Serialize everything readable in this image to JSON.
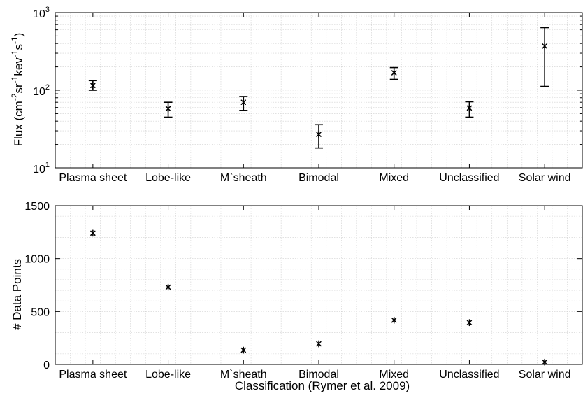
{
  "chart_data": [
    {
      "type": "scatter",
      "categories": [
        "Plasma sheet",
        "Lobe-like",
        "M`sheath",
        "Bimodal",
        "Mixed",
        "Unclassified",
        "Solar wind"
      ],
      "series": [
        {
          "values": [
            115,
            58,
            70,
            27,
            168,
            59,
            370
          ],
          "error_low": [
            100,
            45,
            55,
            18,
            138,
            45,
            112
          ],
          "error_high": [
            133,
            70,
            83,
            36,
            196,
            71,
            640
          ]
        }
      ],
      "yscale": "log",
      "ylim": [
        10,
        1000
      ],
      "yticks": [
        {
          "base": "10",
          "exp": "1"
        },
        {
          "base": "10",
          "exp": "2"
        },
        {
          "base": "10",
          "exp": "3"
        }
      ],
      "ylabel": {
        "main": "Flux (cm",
        "e1": "-2",
        "t1": "sr",
        "e2": "-1",
        "t2": "kev",
        "e3": "-1",
        "t3": "s",
        "e4": "-1",
        "end": ")"
      },
      "xlabel": "",
      "grid": true,
      "legend": "none",
      "marker": "asterisk",
      "color": "#000000"
    },
    {
      "type": "scatter",
      "categories": [
        "Plasma sheet",
        "Lobe-like",
        "M`sheath",
        "Bimodal",
        "Mixed",
        "Unclassified",
        "Solar wind"
      ],
      "series": [
        {
          "values": [
            1240,
            730,
            135,
            195,
            418,
            395,
            22
          ]
        }
      ],
      "yscale": "linear",
      "ylim": [
        0,
        1500
      ],
      "yticks": [
        0,
        500,
        1000,
        1500
      ],
      "ylabel": "# Data Points",
      "xlabel": "Classification (Rymer et al. 2009)",
      "grid": true,
      "legend": "none",
      "marker": "asterisk",
      "color": "#000000"
    }
  ]
}
